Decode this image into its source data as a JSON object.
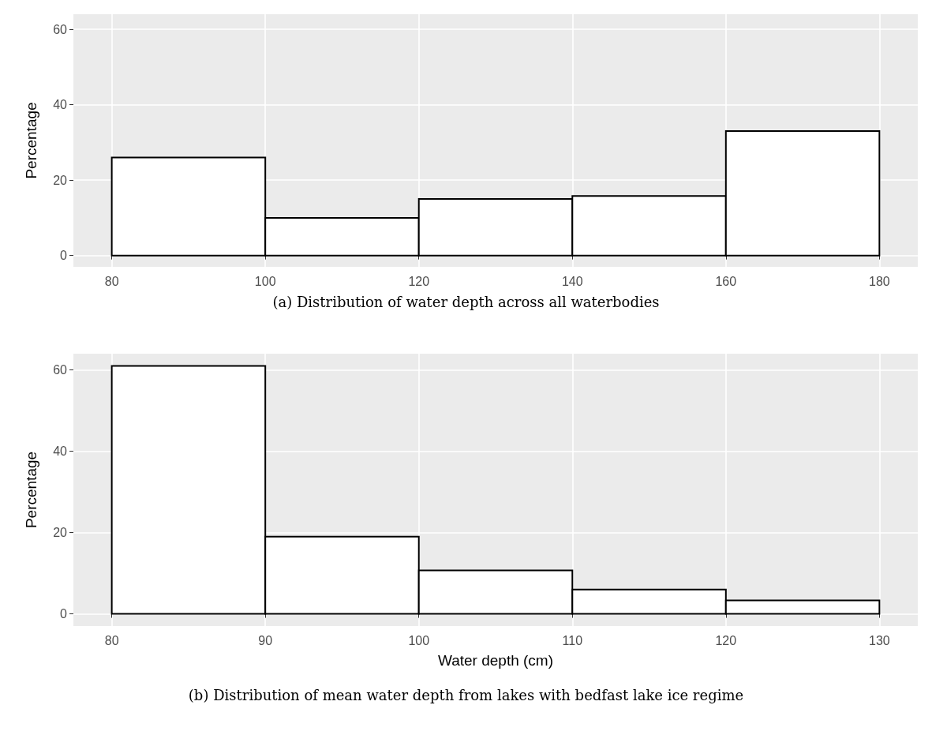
{
  "chart_data": [
    {
      "type": "histogram",
      "bins": [
        80,
        100,
        120,
        140,
        160,
        180
      ],
      "values": [
        26,
        10,
        15,
        15.8,
        33
      ],
      "color": "#ffffff",
      "ylabel": "Percentage",
      "xlim": [
        75,
        185
      ],
      "xticks": [
        80,
        100,
        120,
        140,
        160,
        180
      ],
      "ylim": [
        -3,
        64
      ],
      "yticks": [
        0,
        20,
        40,
        60
      ],
      "grid": true,
      "annotations": [
        "(a) Distribution of water depth across all waterbodies"
      ]
    },
    {
      "type": "histogram",
      "bins": [
        80,
        90,
        100,
        110,
        120,
        130
      ],
      "values": [
        61,
        19,
        10.7,
        6,
        3.3
      ],
      "color": "#ffffff",
      "ylabel": "Percentage",
      "xlabel": "Water depth (cm)",
      "xlim": [
        77.5,
        132.5
      ],
      "xticks": [
        80,
        90,
        100,
        110,
        120,
        130
      ],
      "ylim": [
        -3,
        64
      ],
      "yticks": [
        0,
        20,
        40,
        60
      ],
      "grid": true,
      "annotations": [
        "(b) Distribution of mean water depth from lakes with bedfast lake ice regime"
      ]
    }
  ]
}
